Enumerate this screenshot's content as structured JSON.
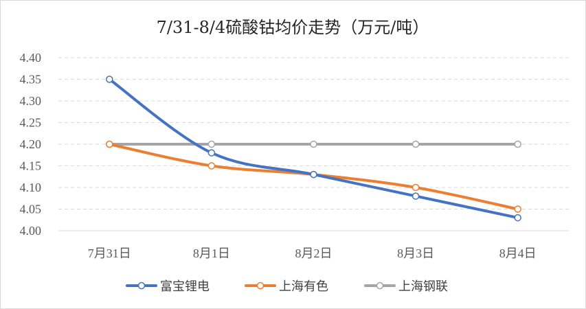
{
  "chart_data": {
    "type": "line",
    "title": "7/31-8/4硫酸钴均价走势（万元/吨）",
    "categories": [
      "7月31日",
      "8月1日",
      "8月2日",
      "8月3日",
      "8月4日"
    ],
    "y_ticks": [
      "4.00",
      "4.05",
      "4.10",
      "4.15",
      "4.20",
      "4.25",
      "4.30",
      "4.35",
      "4.40"
    ],
    "ylim": [
      4.0,
      4.4
    ],
    "grid": true,
    "legend_position": "bottom",
    "series": [
      {
        "name": "富宝锂电",
        "color": "#4472c4",
        "values": [
          4.35,
          4.18,
          4.13,
          4.08,
          4.03
        ]
      },
      {
        "name": "上海有色",
        "color": "#ed7d31",
        "values": [
          4.2,
          4.15,
          4.13,
          4.1,
          4.05
        ]
      },
      {
        "name": "上海钢联",
        "color": "#a5a5a5",
        "values": [
          4.2,
          4.2,
          4.2,
          4.2,
          4.2
        ]
      }
    ]
  }
}
